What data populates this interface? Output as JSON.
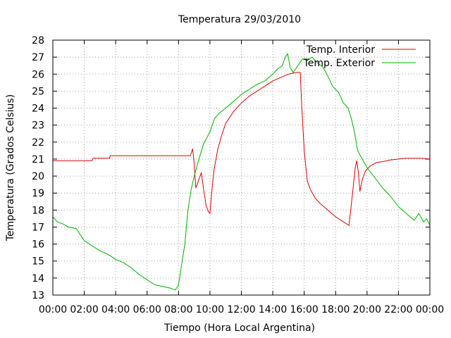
{
  "chart_data": {
    "type": "line",
    "title": "Temperatura 29/03/2010",
    "xlabel": "Tiempo (Hora Local Argentina)",
    "ylabel": "Temperatura (Grados Celsius)",
    "xlim": [
      0,
      24
    ],
    "ylim": [
      13,
      28
    ],
    "x_ticks": [
      "00:00",
      "02:00",
      "04:00",
      "06:00",
      "08:00",
      "10:00",
      "12:00",
      "14:00",
      "16:00",
      "18:00",
      "20:00",
      "22:00",
      "00:00"
    ],
    "y_ticks": [
      "13",
      "14",
      "15",
      "16",
      "17",
      "18",
      "19",
      "20",
      "21",
      "22",
      "23",
      "24",
      "25",
      "26",
      "27",
      "28"
    ],
    "grid": true,
    "legend_position": "top-right",
    "series": [
      {
        "name": "Temp. Interior",
        "color": "#e00000",
        "points": [
          [
            0.0,
            20.9
          ],
          [
            2.5,
            20.9
          ],
          [
            2.55,
            21.05
          ],
          [
            3.6,
            21.05
          ],
          [
            3.65,
            21.2
          ],
          [
            5.5,
            21.2
          ],
          [
            8.6,
            21.2
          ],
          [
            8.75,
            21.2
          ],
          [
            8.9,
            21.6
          ],
          [
            9.0,
            20.7
          ],
          [
            9.1,
            19.3
          ],
          [
            9.3,
            19.8
          ],
          [
            9.45,
            20.2
          ],
          [
            9.6,
            19.2
          ],
          [
            9.75,
            18.3
          ],
          [
            9.9,
            17.9
          ],
          [
            10.0,
            17.8
          ],
          [
            10.1,
            18.9
          ],
          [
            10.25,
            20.3
          ],
          [
            10.5,
            21.6
          ],
          [
            10.75,
            22.4
          ],
          [
            11.0,
            23.1
          ],
          [
            11.5,
            23.8
          ],
          [
            12.0,
            24.3
          ],
          [
            12.5,
            24.7
          ],
          [
            13.0,
            25.0
          ],
          [
            13.5,
            25.3
          ],
          [
            14.0,
            25.6
          ],
          [
            14.5,
            25.8
          ],
          [
            15.0,
            26.0
          ],
          [
            15.5,
            26.1
          ],
          [
            15.75,
            26.1
          ],
          [
            15.85,
            24.0
          ],
          [
            16.0,
            21.5
          ],
          [
            16.2,
            19.7
          ],
          [
            16.4,
            19.2
          ],
          [
            16.7,
            18.7
          ],
          [
            17.0,
            18.4
          ],
          [
            17.5,
            18.0
          ],
          [
            18.0,
            17.6
          ],
          [
            18.5,
            17.3
          ],
          [
            18.85,
            17.1
          ],
          [
            18.95,
            17.9
          ],
          [
            19.1,
            19.2
          ],
          [
            19.25,
            20.5
          ],
          [
            19.35,
            20.9
          ],
          [
            19.45,
            20.2
          ],
          [
            19.55,
            19.1
          ],
          [
            19.7,
            19.8
          ],
          [
            19.9,
            20.3
          ],
          [
            20.2,
            20.6
          ],
          [
            20.6,
            20.8
          ],
          [
            21.0,
            20.85
          ],
          [
            21.5,
            20.95
          ],
          [
            22.0,
            21.0
          ],
          [
            22.5,
            21.05
          ],
          [
            23.0,
            21.05
          ],
          [
            23.5,
            21.05
          ],
          [
            24.0,
            21.0
          ]
        ]
      },
      {
        "name": "Temp. Exterior",
        "color": "#00b000",
        "points": [
          [
            0.0,
            17.6
          ],
          [
            0.3,
            17.3
          ],
          [
            0.6,
            17.2
          ],
          [
            1.0,
            17.0
          ],
          [
            1.5,
            16.9
          ],
          [
            2.0,
            16.2
          ],
          [
            2.5,
            15.9
          ],
          [
            3.0,
            15.6
          ],
          [
            3.5,
            15.4
          ],
          [
            4.0,
            15.1
          ],
          [
            4.5,
            14.9
          ],
          [
            5.0,
            14.6
          ],
          [
            5.5,
            14.2
          ],
          [
            6.0,
            13.9
          ],
          [
            6.5,
            13.6
          ],
          [
            7.0,
            13.5
          ],
          [
            7.5,
            13.4
          ],
          [
            7.8,
            13.3
          ],
          [
            8.0,
            13.6
          ],
          [
            8.2,
            14.8
          ],
          [
            8.4,
            16.0
          ],
          [
            8.6,
            18.0
          ],
          [
            8.8,
            19.2
          ],
          [
            9.0,
            20.0
          ],
          [
            9.3,
            21.0
          ],
          [
            9.6,
            21.9
          ],
          [
            10.0,
            22.6
          ],
          [
            10.3,
            23.4
          ],
          [
            10.6,
            23.7
          ],
          [
            11.0,
            24.0
          ],
          [
            11.5,
            24.4
          ],
          [
            12.0,
            24.8
          ],
          [
            12.5,
            25.1
          ],
          [
            13.0,
            25.4
          ],
          [
            13.5,
            25.6
          ],
          [
            14.0,
            26.0
          ],
          [
            14.3,
            26.3
          ],
          [
            14.6,
            26.5
          ],
          [
            14.8,
            27.0
          ],
          [
            14.95,
            27.2
          ],
          [
            15.1,
            26.4
          ],
          [
            15.3,
            26.1
          ],
          [
            15.6,
            26.5
          ],
          [
            15.9,
            26.9
          ],
          [
            16.2,
            26.8
          ],
          [
            16.5,
            27.0
          ],
          [
            16.8,
            26.7
          ],
          [
            17.2,
            26.4
          ],
          [
            17.5,
            25.9
          ],
          [
            17.8,
            25.3
          ],
          [
            18.2,
            24.9
          ],
          [
            18.5,
            24.3
          ],
          [
            18.8,
            24.0
          ],
          [
            19.0,
            23.4
          ],
          [
            19.2,
            22.6
          ],
          [
            19.4,
            21.5
          ],
          [
            19.7,
            21.0
          ],
          [
            20.0,
            20.5
          ],
          [
            20.5,
            19.9
          ],
          [
            21.0,
            19.3
          ],
          [
            21.5,
            18.8
          ],
          [
            22.0,
            18.2
          ],
          [
            22.5,
            17.8
          ],
          [
            23.0,
            17.4
          ],
          [
            23.3,
            17.8
          ],
          [
            23.6,
            17.3
          ],
          [
            23.8,
            17.5
          ],
          [
            24.0,
            17.1
          ]
        ]
      }
    ]
  }
}
